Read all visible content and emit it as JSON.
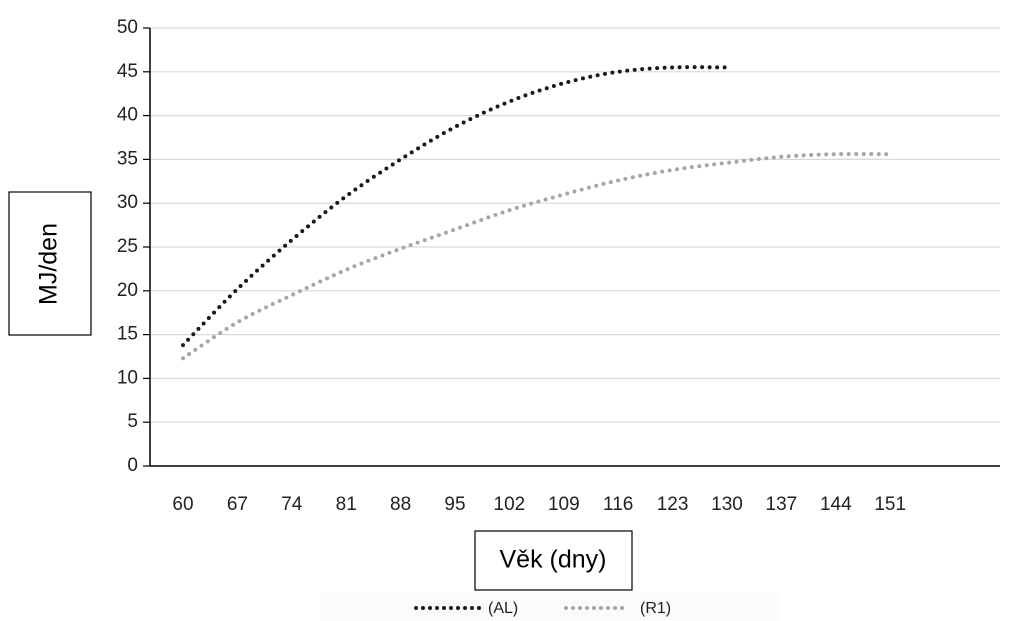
{
  "chart_data": {
    "type": "line",
    "title": "",
    "xlabel": "Věk (dny)",
    "ylabel": "MJ/den",
    "x_ticks": [
      "60",
      "67",
      "74",
      "81",
      "88",
      "95",
      "102",
      "109",
      "116",
      "123",
      "130",
      "137",
      "144",
      "151"
    ],
    "y_ticks": [
      "0",
      "5",
      "10",
      "15",
      "20",
      "25",
      "30",
      "35",
      "40",
      "45",
      "50"
    ],
    "ylim": [
      0,
      50
    ],
    "xlim": [
      60,
      151
    ],
    "grid": "horizontal",
    "legend_position": "bottom",
    "series": [
      {
        "name": "(AL)",
        "color": "#1a1a1a",
        "style": "dotted",
        "x": [
          60,
          67,
          74,
          81,
          88,
          95,
          102,
          109,
          116,
          123,
          130
        ],
        "y": [
          13.8,
          20.2,
          25.8,
          30.8,
          35.0,
          38.7,
          41.6,
          43.7,
          45.0,
          45.5,
          45.5
        ]
      },
      {
        "name": "(R1)",
        "color": "#a6a6a6",
        "style": "dotted",
        "x": [
          60,
          67,
          74,
          81,
          88,
          95,
          102,
          109,
          116,
          123,
          130,
          137,
          144,
          151
        ],
        "y": [
          12.3,
          16.4,
          19.5,
          22.4,
          24.8,
          27.0,
          29.2,
          31.0,
          32.6,
          33.8,
          34.6,
          35.3,
          35.6,
          35.6
        ]
      }
    ]
  }
}
